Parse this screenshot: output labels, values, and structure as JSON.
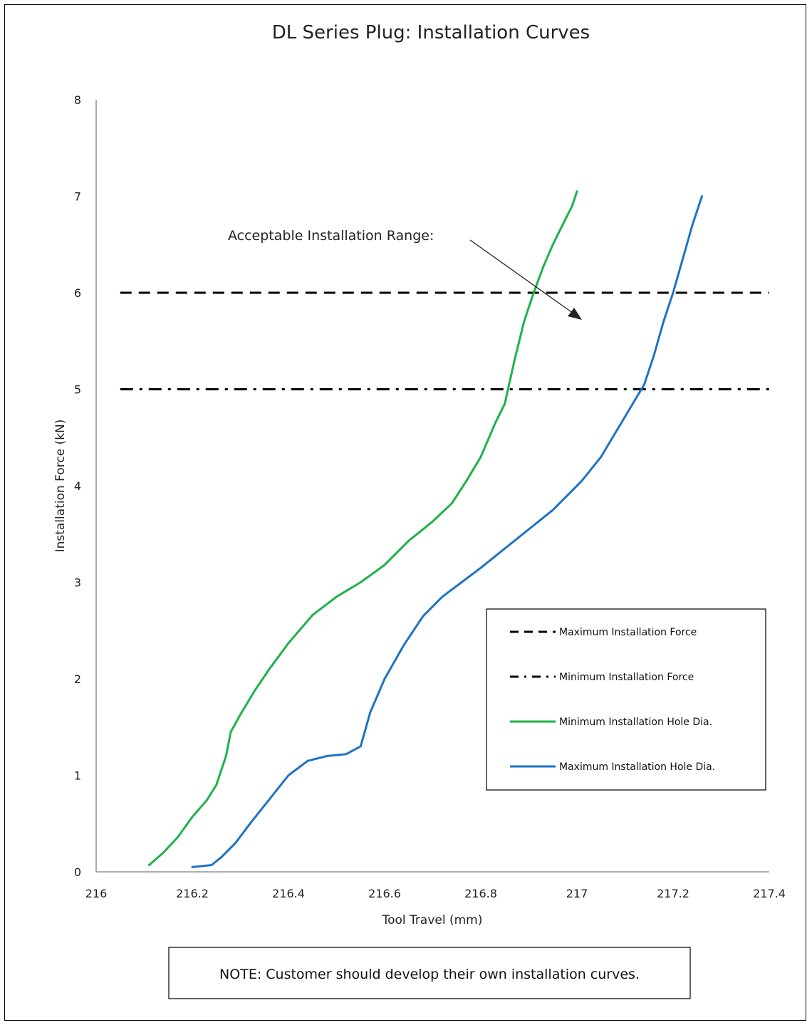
{
  "chart_data": {
    "type": "line",
    "title": "DL Series Plug: Installation Curves",
    "xlabel": "Tool Travel (mm)",
    "ylabel": "Installation Force (kN)",
    "xlim": [
      216,
      217.4
    ],
    "ylim": [
      0,
      8
    ],
    "xticks": [
      "216",
      "216.2",
      "216.4",
      "216.6",
      "216.8",
      "217",
      "217.2",
      "217.4"
    ],
    "yticks": [
      "0",
      "1",
      "2",
      "3",
      "4",
      "5",
      "6",
      "7",
      "8"
    ],
    "grid": false,
    "legend_position": "bottom-right",
    "annotation": "Acceptable Installation Range:",
    "note": "NOTE: Customer should develop their own installation curves.",
    "reference_lines": [
      {
        "name": "Maximum Installation Force",
        "y": 6,
        "style": "dashed",
        "color": "#000000",
        "x_range": [
          216.05,
          217.4
        ]
      },
      {
        "name": "Minimum Installation Force",
        "y": 5,
        "style": "dash-dot",
        "color": "#000000",
        "x_range": [
          216.05,
          217.4
        ]
      }
    ],
    "series": [
      {
        "name": "Minimum Installation Hole Dia.",
        "color": "#1fb24a",
        "x": [
          216.11,
          216.14,
          216.17,
          216.2,
          216.23,
          216.25,
          216.27,
          216.28,
          216.3,
          216.33,
          216.36,
          216.4,
          216.45,
          216.5,
          216.55,
          216.6,
          216.65,
          216.7,
          216.74,
          216.77,
          216.8,
          216.83,
          216.85,
          216.87,
          216.89,
          216.91,
          216.93,
          216.95,
          216.97,
          216.99,
          217.0
        ],
        "y": [
          0.07,
          0.2,
          0.36,
          0.57,
          0.74,
          0.9,
          1.2,
          1.45,
          1.63,
          1.88,
          2.1,
          2.37,
          2.66,
          2.85,
          3.0,
          3.18,
          3.43,
          3.63,
          3.82,
          4.05,
          4.3,
          4.65,
          4.85,
          5.3,
          5.7,
          6.0,
          6.27,
          6.5,
          6.7,
          6.9,
          7.05
        ]
      },
      {
        "name": "Maximum Installation Hole Dia.",
        "color": "#1f73c4",
        "x": [
          216.2,
          216.24,
          216.26,
          216.29,
          216.32,
          216.36,
          216.4,
          216.44,
          216.48,
          216.52,
          216.55,
          216.57,
          216.6,
          216.64,
          216.68,
          216.72,
          216.76,
          216.8,
          216.85,
          216.9,
          216.95,
          216.98,
          217.01,
          217.05,
          217.08,
          217.11,
          217.14,
          217.16,
          217.18,
          217.2,
          217.22,
          217.24,
          217.26
        ],
        "y": [
          0.05,
          0.07,
          0.15,
          0.3,
          0.5,
          0.75,
          1.0,
          1.15,
          1.2,
          1.22,
          1.3,
          1.65,
          2.0,
          2.35,
          2.65,
          2.85,
          3.0,
          3.15,
          3.35,
          3.55,
          3.75,
          3.9,
          4.05,
          4.3,
          4.55,
          4.8,
          5.05,
          5.35,
          5.7,
          6.0,
          6.35,
          6.7,
          7.0
        ]
      }
    ]
  }
}
